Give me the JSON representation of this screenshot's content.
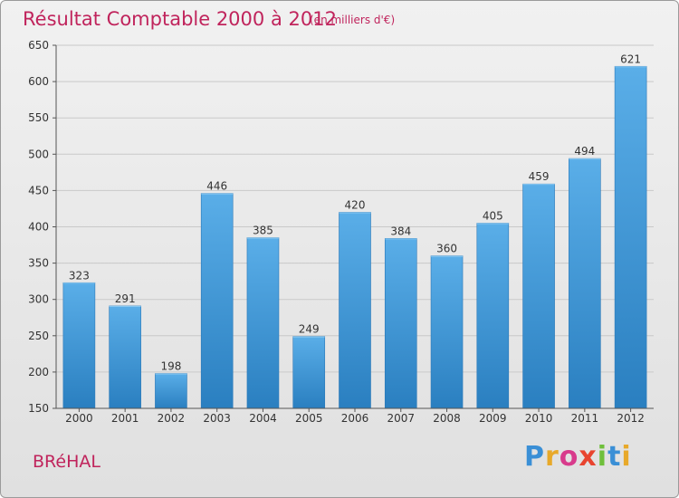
{
  "chart_data": {
    "type": "bar",
    "title": "Résultat Comptable 2000 à 2012",
    "subtitle": "(en milliers d'€)",
    "categories": [
      "2000",
      "2001",
      "2002",
      "2003",
      "2004",
      "2005",
      "2006",
      "2007",
      "2008",
      "2009",
      "2010",
      "2011",
      "2012"
    ],
    "values": [
      323,
      291,
      198,
      446,
      385,
      249,
      420,
      384,
      360,
      405,
      459,
      494,
      621
    ],
    "ylim": [
      150,
      650
    ],
    "yticks": [
      150,
      200,
      250,
      300,
      350,
      400,
      450,
      500,
      550,
      600,
      650
    ],
    "xlabel": "",
    "ylabel": "",
    "grid": true,
    "bar_color_top": "#5aaee8",
    "bar_color_bottom": "#2a7fc0",
    "label_color": "#333333",
    "title_color": "#c0245c"
  },
  "commune": "BRéHAL",
  "logo": {
    "letters": [
      "P",
      "r",
      "o",
      "x",
      "i",
      "t",
      "i"
    ],
    "colors": [
      "#3a8fd6",
      "#e8a92a",
      "#d83b8c",
      "#e8442f",
      "#6fbf3b",
      "#3a8fd6",
      "#e8a92a"
    ]
  }
}
